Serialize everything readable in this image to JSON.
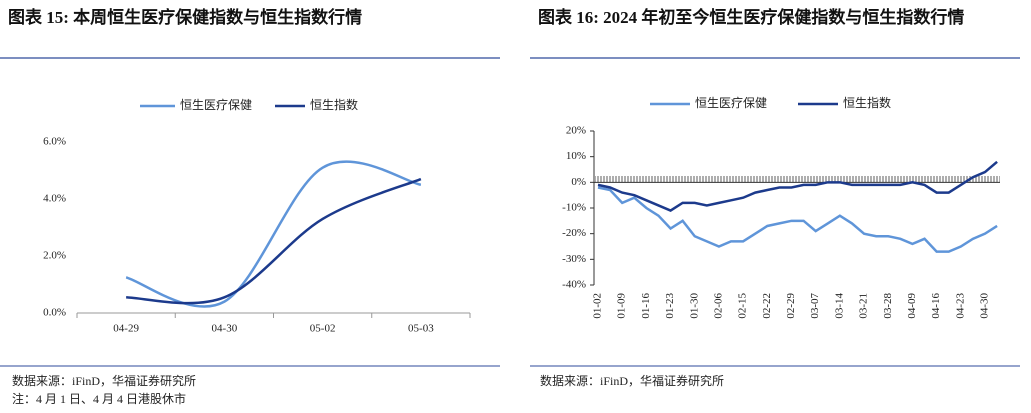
{
  "chart_data": [
    {
      "type": "line",
      "title": "图表 15:  本周恒生医疗保健指数与恒生指数行情",
      "categories": [
        "04-29",
        "04-30",
        "05-02",
        "05-03"
      ],
      "series": [
        {
          "name": "恒生医疗保健",
          "color": "#5f95d9",
          "values": [
            1.25,
            0.4,
            5.1,
            4.5
          ]
        },
        {
          "name": "恒生指数",
          "color": "#1c3a8c",
          "values": [
            0.55,
            0.55,
            3.3,
            4.7
          ]
        }
      ],
      "ylim": [
        0,
        6
      ],
      "yticks": [
        {
          "value": 0,
          "label": "0.0%"
        },
        {
          "value": 2,
          "label": "2.0%"
        },
        {
          "value": 4,
          "label": "4.0%"
        },
        {
          "value": 6,
          "label": "6.0%"
        }
      ],
      "smooth": true,
      "notes": [
        "数据来源：iFinD，华福证券研究所",
        "注：4 月 1 日、4 月 4 日港股休市"
      ]
    },
    {
      "type": "line",
      "title": "图表 16:  2024 年初至今恒生医疗保健指数与恒生指数行情",
      "categories": [
        "01-02",
        null,
        "01-09",
        null,
        "01-16",
        null,
        "01-23",
        null,
        "01-30",
        null,
        "02-06",
        null,
        "02-15",
        null,
        "02-22",
        null,
        "02-29",
        null,
        "03-07",
        null,
        "03-14",
        null,
        "03-21",
        null,
        "03-28",
        null,
        "04-09",
        null,
        "04-16",
        null,
        "04-23",
        null,
        "04-30",
        null
      ],
      "series": [
        {
          "name": "恒生医疗保健",
          "color": "#5f95d9",
          "values": [
            -2,
            -3,
            -8,
            -6,
            -10,
            -13,
            -18,
            -15,
            -21,
            -23,
            -25,
            -23,
            -23,
            -20,
            -17,
            -16,
            -15,
            -15,
            -19,
            -16,
            -13,
            -16,
            -20,
            -21,
            -21,
            -22,
            -24,
            -22,
            -27,
            -27,
            -25,
            -22,
            -20,
            -17
          ]
        },
        {
          "name": "恒生指数",
          "color": "#1c3a8c",
          "values": [
            -1,
            -2,
            -4,
            -5,
            -7,
            -9,
            -11,
            -8,
            -8,
            -9,
            -8,
            -7,
            -6,
            -4,
            -3,
            -2,
            -2,
            -1,
            -1,
            0,
            0,
            -1,
            -1,
            -1,
            -1,
            -1,
            0,
            -1,
            -4,
            -4,
            -1,
            2,
            4,
            8
          ]
        }
      ],
      "ylim": [
        -40,
        20
      ],
      "yticks": [
        {
          "value": 20,
          "label": "20%"
        },
        {
          "value": 10,
          "label": "10%"
        },
        {
          "value": 0,
          "label": "0%"
        },
        {
          "value": -10,
          "label": "-10%"
        },
        {
          "value": -20,
          "label": "-20%"
        },
        {
          "value": -30,
          "label": "-30%"
        },
        {
          "value": -40,
          "label": "-40%"
        }
      ],
      "smooth": false,
      "notes": [
        "数据来源：iFinD，华福证券研究所"
      ]
    }
  ]
}
